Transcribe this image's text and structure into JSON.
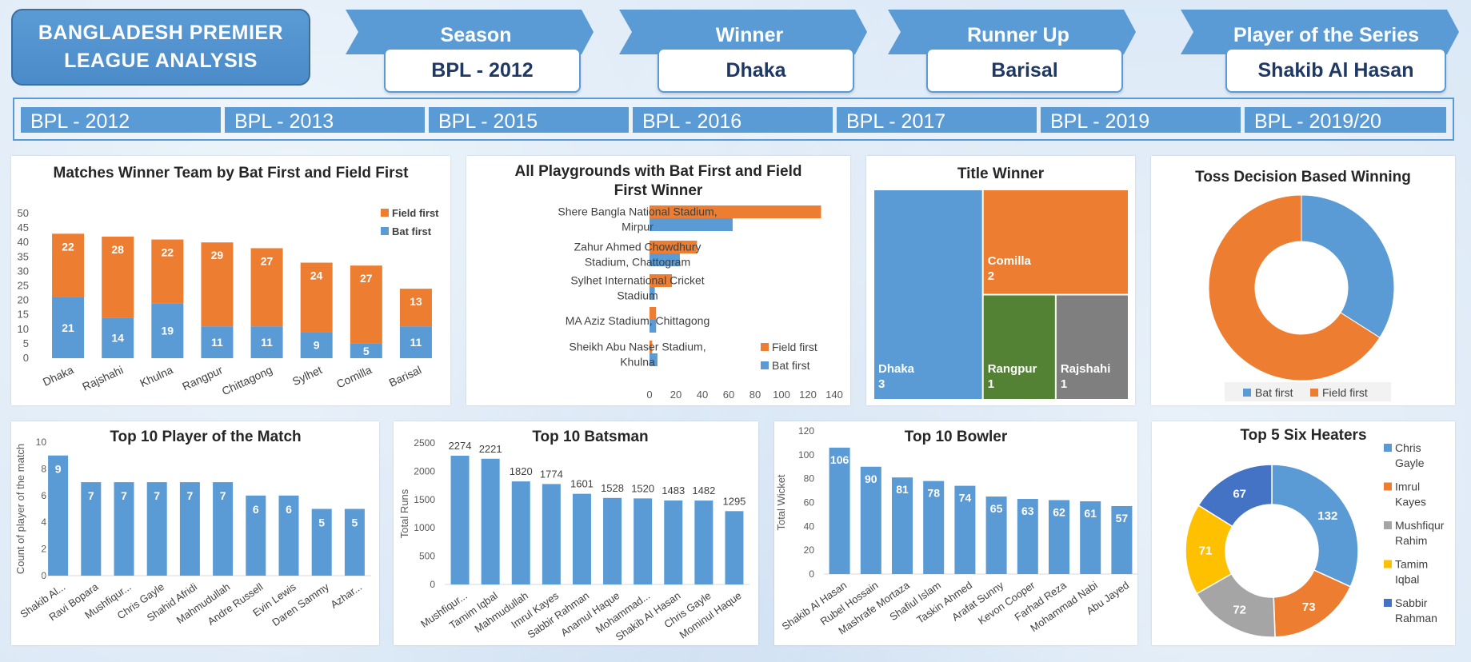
{
  "header": {
    "title_line1": "BANGLADESH PREMIER",
    "title_line2": "LEAGUE ANALYSIS",
    "kpis": [
      {
        "label": "Season",
        "value": "BPL - 2012"
      },
      {
        "label": "Winner",
        "value": "Dhaka"
      },
      {
        "label": "Runner Up",
        "value": "Barisal"
      },
      {
        "label": "Player of the Series",
        "value": "Shakib Al Hasan"
      }
    ]
  },
  "season_slicer": [
    "BPL - 2012",
    "BPL - 2013",
    "BPL - 2015",
    "BPL - 2016",
    "BPL - 2017",
    "BPL - 2019",
    "BPL - 2019/20"
  ],
  "colors": {
    "bat_first": "#5b9bd5",
    "field_first": "#ed7d31",
    "green": "#548235",
    "gray": "#7f7f7f",
    "yellow": "#ffc000",
    "darkblue": "#4472c4"
  },
  "chart_data": [
    {
      "id": "winner_bat_field",
      "type": "bar",
      "title": "Matches Winner Team by Bat First and Field First",
      "categories": [
        "Dhaka",
        "Rajshahi",
        "Khulna",
        "Rangpur",
        "Chittagong",
        "Sylhet",
        "Comilla",
        "Barisal"
      ],
      "series": [
        {
          "name": "Bat first",
          "values": [
            21,
            14,
            19,
            11,
            11,
            9,
            5,
            11
          ]
        },
        {
          "name": "Field first",
          "values": [
            22,
            28,
            22,
            29,
            27,
            24,
            27,
            13
          ]
        }
      ],
      "stacked": true,
      "y_ticks": [
        "0",
        "5",
        "10",
        "15",
        "20",
        "25",
        "30",
        "35",
        "40",
        "45",
        "50"
      ],
      "ylim": [
        0,
        50
      ],
      "legend": "top-right"
    },
    {
      "id": "playgrounds",
      "type": "bar",
      "orientation": "horizontal",
      "title_line1": "All Playgrounds with Bat First and Field",
      "title_line2": "First Winner",
      "categories": [
        [
          "Shere Bangla National Stadium,",
          "Mirpur"
        ],
        [
          "Zahur Ahmed Chowdhury",
          "Stadium, Chattogram"
        ],
        [
          "Sylhet International Cricket",
          "Stadium"
        ],
        [
          "MA Aziz Stadium, Chittagong"
        ],
        [
          "Sheikh Abu Naser Stadium,",
          "Khulna"
        ]
      ],
      "series": [
        {
          "name": "Field first",
          "values": [
            130,
            36,
            17,
            5,
            2
          ]
        },
        {
          "name": "Bat first",
          "values": [
            63,
            23,
            4,
            5,
            6
          ]
        }
      ],
      "x_ticks": [
        "0",
        "20",
        "40",
        "60",
        "80",
        "100",
        "120",
        "140"
      ],
      "xlim": [
        0,
        140
      ],
      "legend": "bottom-right"
    },
    {
      "id": "title_winner",
      "type": "treemap",
      "title": "Title Winner",
      "items": [
        {
          "name": "Dhaka",
          "value": 3
        },
        {
          "name": "Comilla",
          "value": 2
        },
        {
          "name": "Rangpur",
          "value": 1
        },
        {
          "name": "Rajshahi",
          "value": 1
        }
      ]
    },
    {
      "id": "toss_decision",
      "type": "pie",
      "donut": true,
      "title": "Toss Decision Based Winning",
      "labels": [
        "Bat first",
        "Field first"
      ],
      "values": [
        34,
        66
      ],
      "legend": "bottom"
    },
    {
      "id": "player_of_match",
      "type": "bar",
      "title": "Top 10 Player of the Match",
      "ylabel": "Count of player of the match",
      "categories": [
        "Shakib Al...",
        "Ravi Bopara",
        "Mushfiqur...",
        "Chris Gayle",
        "Shahid Afridi",
        "Mahmudullah",
        "Andre Russell",
        "Evin Lewis",
        "Daren Sammy",
        "Azhar..."
      ],
      "values": [
        9,
        7,
        7,
        7,
        7,
        7,
        6,
        6,
        5,
        5
      ],
      "y_ticks": [
        "0",
        "2",
        "4",
        "6",
        "8",
        "10"
      ],
      "ylim": [
        0,
        10
      ]
    },
    {
      "id": "top_batsman",
      "type": "bar",
      "title": "Top 10 Batsman",
      "ylabel": "Total Runs",
      "categories": [
        "Mushfiqur...",
        "Tamim Iqbal",
        "Mahmudullah",
        "Imrul Kayes",
        "Sabbir Rahman",
        "Anamul Haque",
        "Mohammad...",
        "Shakib Al Hasan",
        "Chris Gayle",
        "Mominul Haque"
      ],
      "values": [
        2274,
        2221,
        1820,
        1774,
        1601,
        1528,
        1520,
        1483,
        1482,
        1295
      ],
      "y_ticks": [
        "0",
        "500",
        "1000",
        "1500",
        "2000",
        "2500"
      ],
      "ylim": [
        0,
        2500
      ]
    },
    {
      "id": "top_bowler",
      "type": "bar",
      "title": "Top 10 Bowler",
      "ylabel": "Total Wicket",
      "categories": [
        "Shakib Al Hasan",
        "Rubel Hossain",
        "Mashrafe Mortaza",
        "Shafiul Islam",
        "Taskin Ahmed",
        "Arafat Sunny",
        "Kevon Cooper",
        "Farhad Reza",
        "Mohammad Nabi",
        "Abu Jayed"
      ],
      "values": [
        106,
        90,
        81,
        78,
        74,
        65,
        63,
        62,
        61,
        57
      ],
      "y_ticks": [
        "0",
        "20",
        "40",
        "60",
        "80",
        "100",
        "120"
      ],
      "ylim": [
        0,
        120
      ]
    },
    {
      "id": "six_hitters",
      "type": "pie",
      "donut": true,
      "title": "Top 5 Six Heaters",
      "labels": [
        [
          "Chris",
          "Gayle"
        ],
        [
          "Imrul",
          "Kayes"
        ],
        [
          "Mushfiqur",
          "Rahim"
        ],
        [
          "Tamim",
          "Iqbal"
        ],
        [
          "Sabbir",
          "Rahman"
        ]
      ],
      "values": [
        132,
        73,
        72,
        71,
        67
      ],
      "legend": "right"
    }
  ]
}
